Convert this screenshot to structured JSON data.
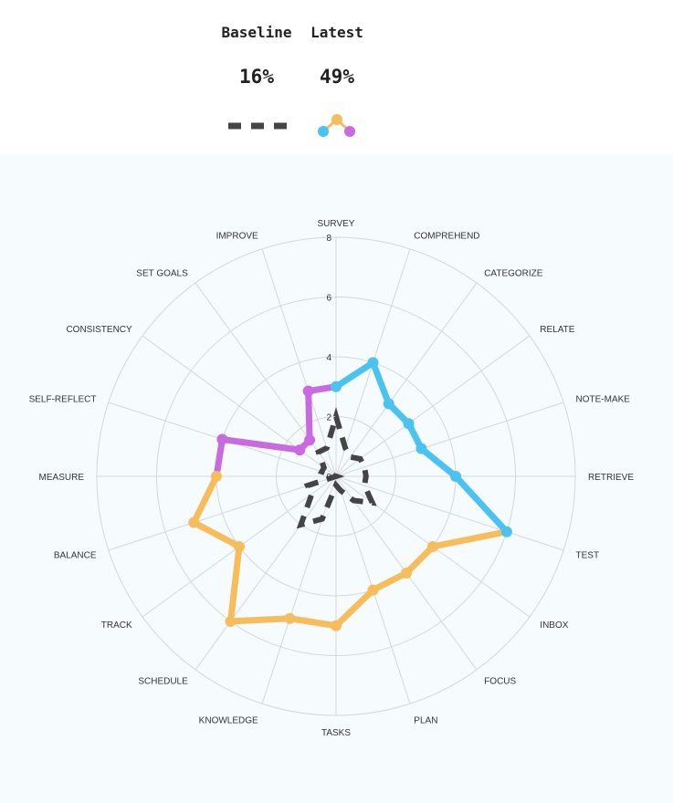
{
  "legend": {
    "baseline": {
      "label": "Baseline",
      "value": "16%"
    },
    "latest": {
      "label": "Latest",
      "value": "49%"
    }
  },
  "colors": {
    "baseline": "#444444",
    "latest_blue": "#4bc2ef",
    "latest_orange": "#f7bd5d",
    "latest_purple": "#c96be0",
    "grid": "#d4d8db"
  },
  "chart_data": {
    "type": "radar",
    "axes": [
      "SURVEY",
      "COMPREHEND",
      "CATEGORIZE",
      "RELATE",
      "NOTE-MAKE",
      "RETRIEVE",
      "TEST",
      "INBOX",
      "FOCUS",
      "PLAN",
      "TASKS",
      "KNOWLEDGE",
      "SCHEDULE",
      "TRACK",
      "BALANCE",
      "MEASURE",
      "SELF-REFLECT",
      "CONSISTENCY",
      "SET GOALS",
      "IMPROVE"
    ],
    "r_ticks": [
      0,
      2,
      4,
      6,
      8
    ],
    "r_max": 8,
    "grid": true,
    "series": [
      {
        "name": "Baseline",
        "style": "dashed",
        "values": [
          2.0,
          1.0,
          0.8,
          1.0,
          1.0,
          1.0,
          1.0,
          1.5,
          1.0,
          0.5,
          0.3,
          1.5,
          2.0,
          1.0,
          1.0,
          0.0,
          0.5,
          0.5,
          1.0,
          1.0
        ]
      },
      {
        "name": "Latest",
        "values": [
          3.0,
          4.0,
          3.0,
          3.0,
          3.0,
          4.0,
          6.0,
          4.0,
          4.0,
          4.0,
          5.0,
          5.0,
          6.0,
          4.0,
          5.0,
          4.0,
          4.0,
          1.5,
          1.5,
          3.0
        ]
      }
    ]
  }
}
